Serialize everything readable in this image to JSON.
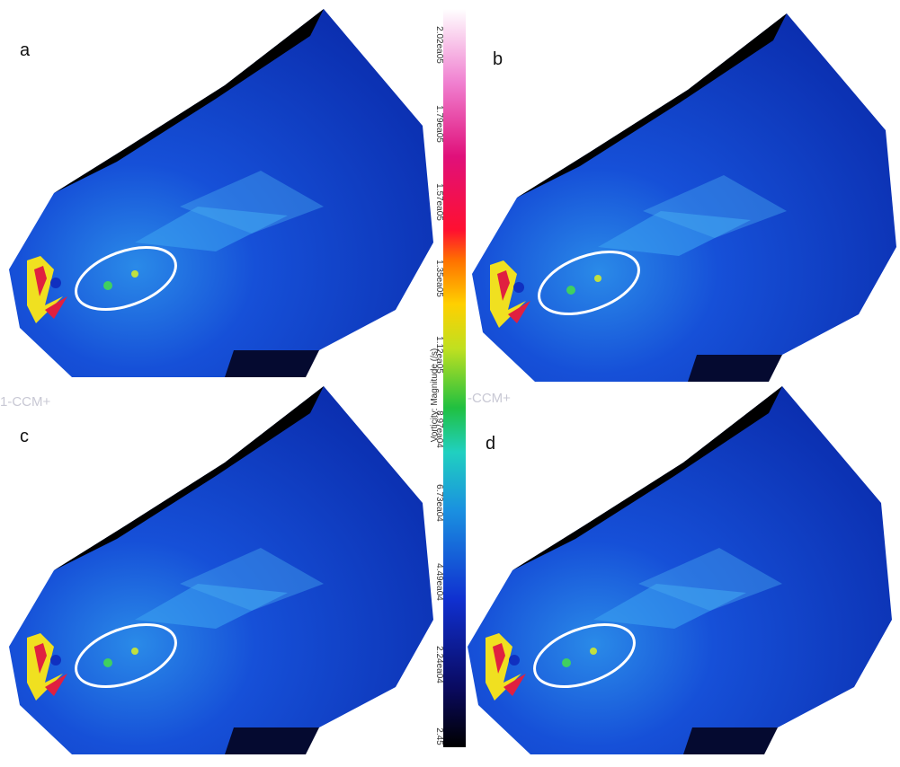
{
  "panels": [
    {
      "label": "a"
    },
    {
      "label": "b"
    },
    {
      "label": "c"
    },
    {
      "label": "d"
    }
  ],
  "side_texts": [
    "1-CCM+",
    "-CCM+"
  ],
  "colorbar": {
    "title": "Vorticity: Magnitude (/s)",
    "ticks": [
      "2.45",
      "2.24ea04",
      "4.49ea04",
      "6.73ea04",
      "8.97ea04",
      "1.12ea05",
      "1.35ea05",
      "1.57ea05",
      "1.79ea05",
      "2.02ea05"
    ]
  }
}
